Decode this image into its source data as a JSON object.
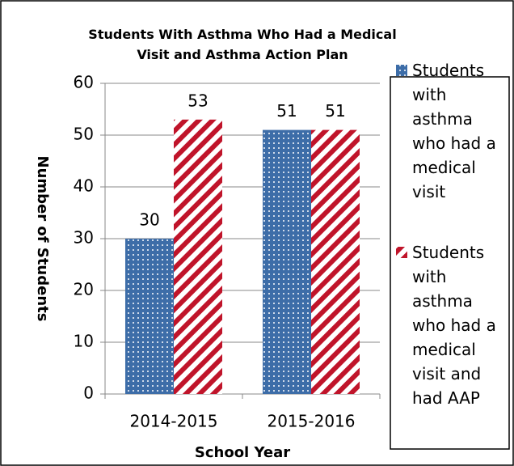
{
  "chart_data": {
    "type": "bar",
    "title": "Students With Asthma Who Had a Medical Visit and Asthma Action Plan",
    "x_label": "School Year",
    "y_label": "Number of Students",
    "categories": [
      "2014-2015",
      "2015-2016"
    ],
    "series": [
      {
        "name": "Students with asthma who had a medical visit",
        "color": "#3d6da8",
        "pattern": "dots",
        "values": [
          30,
          51
        ]
      },
      {
        "name": "Students with asthma who had a medical visit and had AAP",
        "color": "#c0142a",
        "pattern": "stripes",
        "values": [
          53,
          51
        ]
      }
    ],
    "ylim": [
      0,
      60
    ],
    "yticks": [
      0,
      10,
      20,
      30,
      40,
      50,
      60
    ],
    "grid": true,
    "legend": "right"
  }
}
